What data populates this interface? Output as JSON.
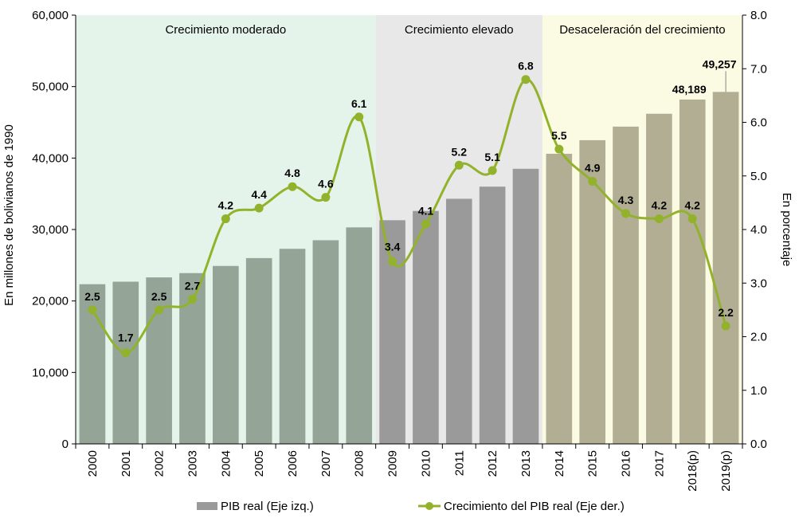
{
  "chart_data": {
    "type": "bar",
    "categories": [
      "2000",
      "2001",
      "2002",
      "2003",
      "2004",
      "2005",
      "2006",
      "2007",
      "2008",
      "2009",
      "2010",
      "2011",
      "2012",
      "2013",
      "2014",
      "2015",
      "2016",
      "2017",
      "2018(p)",
      "2019(p)"
    ],
    "series": [
      {
        "name": "PIB real (Eje izq.)",
        "type": "bar",
        "axis": "left",
        "values": [
          22350,
          22700,
          23300,
          23900,
          24900,
          26000,
          27300,
          28500,
          30300,
          31300,
          32600,
          34300,
          36000,
          38500,
          40600,
          42500,
          44400,
          46200,
          48189,
          49257
        ],
        "colors": [
          "#94a598",
          "#94a598",
          "#94a598",
          "#94a598",
          "#94a598",
          "#94a598",
          "#94a598",
          "#94a598",
          "#94a598",
          "#9a9a9a",
          "#9a9a9a",
          "#9a9a9a",
          "#9a9a9a",
          "#9a9a9a",
          "#b1ae94",
          "#b1ae94",
          "#b1ae94",
          "#b1ae94",
          "#b1ae94",
          "#b1ae94"
        ],
        "labels": {
          "18": "48,189",
          "19": "49,257"
        }
      },
      {
        "name": "Crecimiento del PIB real (Eje der.)",
        "type": "line",
        "axis": "right",
        "values": [
          2.5,
          1.7,
          2.5,
          2.7,
          4.2,
          4.4,
          4.8,
          4.6,
          6.1,
          3.4,
          4.1,
          5.2,
          5.1,
          6.8,
          5.5,
          4.9,
          4.3,
          4.2,
          4.2,
          2.2
        ],
        "labels": [
          "2.5",
          "1.7",
          "2.5",
          "2.7",
          "4.2",
          "4.4",
          "4.8",
          "4.6",
          "6.1",
          "3.4",
          "4.1",
          "5.2",
          "5.1",
          "6.8",
          "5.5",
          "4.9",
          "4.3",
          "4.2",
          "4.2",
          "2.2"
        ],
        "color": "#93b22c"
      }
    ],
    "y_left": {
      "label": "En millones de bolivianos de 1990",
      "range": [
        0,
        60000
      ],
      "ticks": [
        "0",
        "10,000",
        "20,000",
        "30,000",
        "40,000",
        "50,000",
        "60,000"
      ]
    },
    "y_right": {
      "label": "En porcentaje",
      "range": [
        0,
        8
      ],
      "ticks": [
        "0.0",
        "1.0",
        "2.0",
        "3.0",
        "4.0",
        "5.0",
        "6.0",
        "7.0",
        "8.0"
      ]
    },
    "periods": [
      {
        "label": "Crecimiento moderado",
        "from": 0,
        "to": 8,
        "color": "#e5f4ea"
      },
      {
        "label": "Crecimiento elevado",
        "from": 9,
        "to": 13,
        "color": "#e8e8e8"
      },
      {
        "label": "Desaceleración del crecimiento",
        "from": 14,
        "to": 19,
        "color": "#fbfbe3"
      }
    ],
    "grid": false,
    "legend_position": "bottom"
  }
}
